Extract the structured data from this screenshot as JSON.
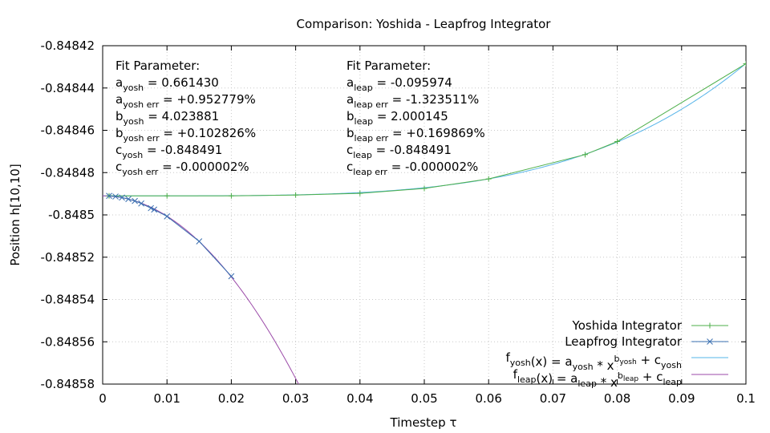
{
  "chart_data": {
    "type": "line",
    "title": "Comparison: Yoshida - Leapfrog Integrator",
    "xlabel": "Timestep τ",
    "ylabel": "Position h[10,10]",
    "xlim": [
      0,
      0.1
    ],
    "ylim": [
      -0.84858,
      -0.84842
    ],
    "grid": true,
    "legend_position": "bottom-right",
    "x_ticks": [
      "0",
      "0.01",
      "0.02",
      "0.03",
      "0.04",
      "0.05",
      "0.06",
      "0.07",
      "0.08",
      "0.09",
      "0.1"
    ],
    "y_ticks": [
      "-0.84842",
      "-0.84844",
      "-0.84846",
      "-0.84848",
      "-0.8485",
      "-0.84852",
      "-0.84854",
      "-0.84856",
      "-0.84858"
    ],
    "series": [
      {
        "name": "Yoshida Integrator",
        "color": "#4daf4a",
        "marker": "plus",
        "points": [
          [
            0.001,
            -0.848491
          ],
          [
            0.01,
            -0.848491
          ],
          [
            0.02,
            -0.848491
          ],
          [
            0.03,
            -0.8484906
          ],
          [
            0.04,
            -0.8484898
          ],
          [
            0.05,
            -0.8484875
          ],
          [
            0.06,
            -0.848483
          ],
          [
            0.075,
            -0.8484715
          ],
          [
            0.08,
            -0.8484653
          ],
          [
            0.1,
            -0.8484285
          ]
        ]
      },
      {
        "name": "Leapfrog Integrator",
        "color": "#3a6fb0",
        "marker": "cross",
        "points": [
          [
            0.001,
            -0.848491
          ],
          [
            0.002,
            -0.8484913
          ],
          [
            0.003,
            -0.8484918
          ],
          [
            0.004,
            -0.8484925
          ],
          [
            0.005,
            -0.8484934
          ],
          [
            0.006,
            -0.8484946
          ],
          [
            0.0075,
            -0.8484968
          ],
          [
            0.008,
            -0.8484975
          ],
          [
            0.01,
            -0.8485007
          ],
          [
            0.015,
            -0.8485125
          ],
          [
            0.02,
            -0.848529
          ]
        ]
      }
    ],
    "fits": [
      {
        "label": "f_yosh(x) = a_yosh * x^b_yosh + c_yosh",
        "color": "#56b4e9",
        "a": 0.66143,
        "b": 4.023881,
        "c": -0.848491,
        "x_range": [
          0,
          0.1
        ]
      },
      {
        "label": "f_leap(x) = a_leap * x^b_leap + c_leap",
        "color": "#9b4aa8",
        "a": -0.095974,
        "b": 2.000145,
        "c": -0.848491,
        "x_range": [
          0,
          0.1
        ]
      }
    ],
    "annotations": {
      "yosh": {
        "heading": "Fit Parameter:",
        "lines": [
          {
            "sym": "a",
            "sub": "yosh",
            "val": " = 0.661430"
          },
          {
            "sym": "a",
            "sub": "yosh err",
            "val": " = +0.952779%"
          },
          {
            "sym": "b",
            "sub": "yosh",
            "val": " = 4.023881"
          },
          {
            "sym": "b",
            "sub": "yosh err",
            "val": " = +0.102826%"
          },
          {
            "sym": "c",
            "sub": "yosh",
            "val": " = -0.848491"
          },
          {
            "sym": "c",
            "sub": "yosh err",
            "val": " = -0.000002%"
          }
        ]
      },
      "leap": {
        "heading": "Fit Parameter:",
        "lines": [
          {
            "sym": "a",
            "sub": "leap",
            "val": " = -0.095974"
          },
          {
            "sym": "a",
            "sub": "leap err",
            "val": " = -1.323511%"
          },
          {
            "sym": "b",
            "sub": "leap",
            "val": " = 2.000145"
          },
          {
            "sym": "b",
            "sub": "leap err",
            "val": " = +0.169869%"
          },
          {
            "sym": "c",
            "sub": "leap",
            "val": " = -0.848491"
          },
          {
            "sym": "c",
            "sub": "leap err",
            "val": " = -0.000002%"
          }
        ]
      }
    },
    "legend": [
      {
        "parts": [
          {
            "t": "Yoshida Integrator"
          }
        ],
        "color": "#4daf4a",
        "marker": "plus"
      },
      {
        "parts": [
          {
            "t": "Leapfrog Integrator"
          }
        ],
        "color": "#3a6fb0",
        "marker": "cross"
      },
      {
        "parts": [
          {
            "t": "f"
          },
          {
            "t": "yosh",
            "sub": true
          },
          {
            "t": "(x) = a"
          },
          {
            "t": "yosh",
            "sub": true
          },
          {
            "t": " * x"
          },
          {
            "t": "b",
            "sup": true
          },
          {
            "t": "yosh",
            "supsub": true
          },
          {
            "t": " + c"
          },
          {
            "t": "yosh",
            "sub": true
          }
        ],
        "color": "#56b4e9",
        "marker": "none"
      },
      {
        "parts": [
          {
            "t": "f"
          },
          {
            "t": "leap",
            "sub": true
          },
          {
            "t": "(x) = a"
          },
          {
            "t": "leap",
            "sub": true
          },
          {
            "t": " * x"
          },
          {
            "t": "b",
            "sup": true
          },
          {
            "t": "leap",
            "supsub": true
          },
          {
            "t": " + c"
          },
          {
            "t": "leap",
            "sub": true
          }
        ],
        "color": "#9b4aa8",
        "marker": "none"
      }
    ]
  }
}
